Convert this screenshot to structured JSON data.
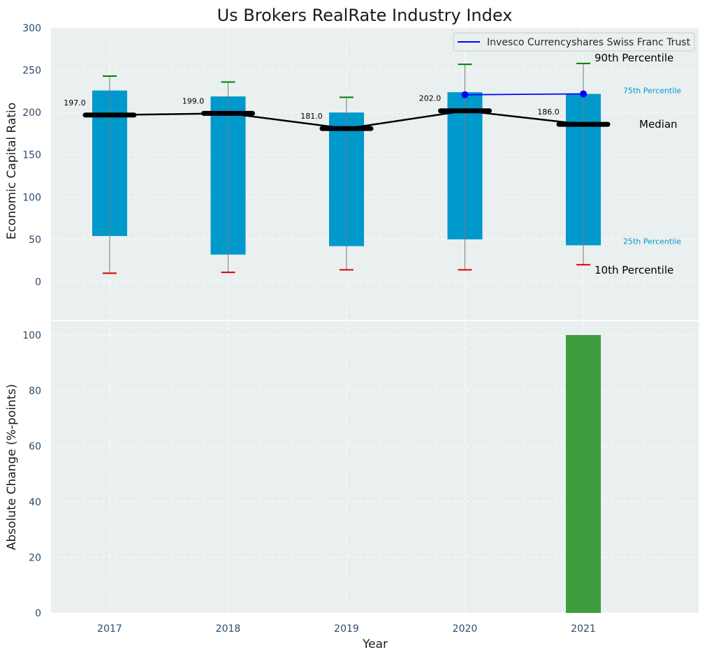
{
  "chart_data": {
    "title": "Us Brokers RealRate Industry Index",
    "xlabel": "Year",
    "categories": [
      "2017",
      "2018",
      "2019",
      "2020",
      "2021"
    ],
    "top_panel": {
      "type": "box-percentile",
      "ylabel": "Economic Capital Ratio",
      "ylim": [
        -45,
        300
      ],
      "yticks": [
        0,
        50,
        100,
        150,
        200,
        250,
        300
      ],
      "p10": [
        10,
        11,
        14,
        14,
        20
      ],
      "p25": [
        54,
        32,
        42,
        50,
        43
      ],
      "median": [
        197.0,
        199.0,
        181.0,
        202.0,
        186.0
      ],
      "median_labels": [
        "197.0",
        "199.0",
        "181.0",
        "202.0",
        "186.0"
      ],
      "p75": [
        226,
        219,
        200,
        224,
        222
      ],
      "p90": [
        243,
        236,
        218,
        257,
        258
      ],
      "series": [
        {
          "name": "Invesco Currencyshares Swiss Franc Trust",
          "x": [
            "2020",
            "2021"
          ],
          "values": [
            221,
            222
          ],
          "color": "#0000ff"
        }
      ],
      "annotations": {
        "p90": "90th Percentile",
        "p75": "75th Percentile",
        "median": "Median",
        "p25": "25th Percentile",
        "p10": "10th Percentile"
      },
      "legend": "top-right",
      "grid": true
    },
    "bottom_panel": {
      "type": "bar",
      "ylabel": "Absolute Change (%-points)",
      "ylim": [
        0,
        105
      ],
      "yticks": [
        0,
        20,
        40,
        60,
        80,
        100
      ],
      "values": [
        null,
        null,
        null,
        null,
        100
      ],
      "bar_color": "#3d9c3d",
      "grid": true
    },
    "colors": {
      "box": "#0099cc",
      "median_line": "#000000",
      "p90_cap": "#008000",
      "p10_cap": "#dd0000",
      "panel_bg": "#eaeff0",
      "label_p75": "#0099cc",
      "tick_text": "#2c4a6b"
    }
  }
}
